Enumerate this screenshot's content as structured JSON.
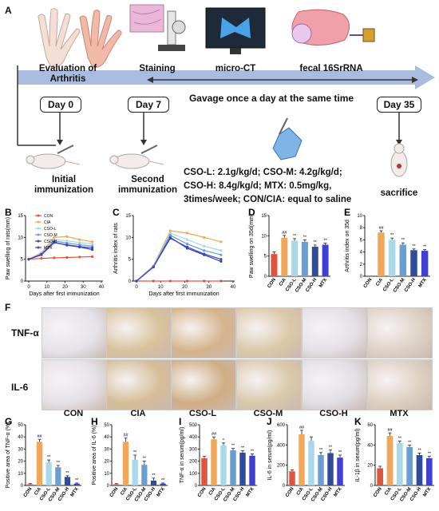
{
  "panelA": {
    "letter": "A",
    "labels": {
      "evaluation": "Evaluation of Arthritis",
      "staining": "Staining",
      "microct": "micro-CT",
      "fecal": "fecal 16SrRNA",
      "gavage": "Gavage once a day at the same time",
      "initial": "Initial\nimmunization",
      "second": "Second\nimmunization",
      "sacrifice": "sacrifice"
    },
    "days": [
      "Day 0",
      "Day 7",
      "Day 35"
    ],
    "doses": [
      "CSO-L: 2.1g/kg/d;  CSO-M: 4.2g/kg/d;",
      "CSO-H: 8.4g/kg/d;   MTX: 0.5mg/kg,",
      "3times/week; CON/CIA: equal to saline"
    ]
  },
  "groups": [
    "CON",
    "CIA",
    "CSO-L",
    "CSO-M",
    "CSO-H",
    "MTX"
  ],
  "colors": {
    "CON": "#e0533f",
    "CIA": "#f2a65a",
    "CSO-L": "#a8d8ea",
    "CSO-M": "#6a9ed0",
    "CSO-H": "#2f4b9a",
    "MTX": "#3f3fd4",
    "arrow": "#a9bce0"
  },
  "panelF": {
    "letter": "F",
    "rows": [
      "TNF-α",
      "IL-6"
    ],
    "cols": [
      "CON",
      "CIA",
      "CSO-L",
      "CSO-M",
      "CSO-H",
      "MTX"
    ]
  },
  "chart_data": [
    {
      "panel": "B",
      "type": "line",
      "ylabel": "Paw swelling of rats(mm)",
      "xlabel": "Days after first immunization",
      "x": [
        0,
        7,
        14,
        21,
        28,
        35
      ],
      "xticks": [
        0,
        10,
        20,
        30,
        40
      ],
      "ylim": [
        0,
        15
      ],
      "yticks": [
        0,
        5,
        10,
        15
      ],
      "series": [
        {
          "name": "CON",
          "values": [
            5,
            5.2,
            5.3,
            5.4,
            5.5,
            5.6
          ]
        },
        {
          "name": "CIA",
          "values": [
            5,
            6.5,
            10,
            10.2,
            9.5,
            9
          ]
        },
        {
          "name": "CSO-L",
          "values": [
            5,
            6.3,
            9.5,
            9.2,
            8.8,
            8.5
          ]
        },
        {
          "name": "CSO-M",
          "values": [
            5,
            6.2,
            9.2,
            8.7,
            8.3,
            8
          ]
        },
        {
          "name": "CSO-H",
          "values": [
            5,
            6.1,
            8.9,
            8.2,
            7.8,
            7.2
          ]
        },
        {
          "name": "MTX",
          "values": [
            5,
            6,
            8.8,
            8.3,
            7.9,
            7.6
          ]
        }
      ]
    },
    {
      "panel": "C",
      "type": "line",
      "ylabel": "Arthritis index of rats",
      "xlabel": "Days after first immunization",
      "x": [
        0,
        7,
        14,
        21,
        28,
        35
      ],
      "xticks": [
        0,
        10,
        20,
        30,
        40
      ],
      "ylim": [
        0,
        15
      ],
      "yticks": [
        0,
        5,
        10,
        15
      ],
      "series": [
        {
          "name": "CON",
          "values": [
            0,
            0,
            0,
            0,
            0,
            0
          ]
        },
        {
          "name": "CIA",
          "values": [
            0,
            3.5,
            11.5,
            11,
            10,
            9
          ]
        },
        {
          "name": "CSO-L",
          "values": [
            0,
            3.4,
            11,
            9.5,
            8,
            7
          ]
        },
        {
          "name": "CSO-M",
          "values": [
            0,
            3.3,
            10.5,
            8.5,
            7,
            6
          ]
        },
        {
          "name": "CSO-H",
          "values": [
            0,
            3.2,
            10,
            7.5,
            6,
            4.5
          ]
        },
        {
          "name": "MTX",
          "values": [
            0,
            3.2,
            9.8,
            7.8,
            6.2,
            5
          ]
        }
      ]
    },
    {
      "panel": "D",
      "type": "bar",
      "ylabel": "Paw swelling on 35d(mm)",
      "categories": [
        "CON",
        "CIA",
        "CSO-L",
        "CSO-M",
        "CSO-H",
        "MTX"
      ],
      "values": [
        5.5,
        9.5,
        8.8,
        8.5,
        7.3,
        7.8
      ],
      "errors": [
        0.5,
        0.6,
        0.5,
        0.5,
        0.4,
        0.4
      ],
      "ylim": [
        0,
        15
      ],
      "yticks": [
        0,
        5,
        10,
        15
      ],
      "sig": [
        "",
        "##",
        "**",
        "**",
        "**",
        "**"
      ]
    },
    {
      "panel": "E",
      "type": "bar",
      "ylabel": "Arthritis index on 35d",
      "categories": [
        "CON",
        "CIA",
        "CSO-L",
        "CSO-M",
        "CSO-H",
        "MTX"
      ],
      "values": [
        0,
        7.2,
        6,
        5.2,
        4.3,
        4.2
      ],
      "errors": [
        0,
        0.3,
        0.3,
        0.3,
        0.2,
        0.2
      ],
      "ylim": [
        0,
        10
      ],
      "yticks": [
        0,
        2,
        4,
        6,
        8,
        10
      ],
      "sig": [
        "",
        "##",
        "**",
        "**",
        "**",
        "**"
      ]
    },
    {
      "panel": "G",
      "type": "bar",
      "ylabel": "Positive area of TNF-α (%)",
      "categories": [
        "CON",
        "CIA",
        "CSO-L",
        "CSO-M",
        "CSO-H",
        "MTX"
      ],
      "values": [
        1,
        36,
        19,
        15,
        7,
        1.5
      ],
      "errors": [
        0.5,
        2,
        2,
        1.5,
        1,
        0.5
      ],
      "ylim": [
        0,
        50
      ],
      "yticks": [
        0,
        10,
        20,
        30,
        40,
        50
      ],
      "sig": [
        "",
        "##",
        "**",
        "**",
        "**",
        "**"
      ]
    },
    {
      "panel": "H",
      "type": "bar",
      "ylabel": "Positive area of IL-6 (%)",
      "categories": [
        "CON",
        "CIA",
        "CSO-L",
        "CSO-M",
        "CSO-H",
        "MTX"
      ],
      "values": [
        1,
        36,
        21,
        17,
        4,
        1.5
      ],
      "errors": [
        0.5,
        3,
        4,
        3,
        2,
        0.5
      ],
      "ylim": [
        0,
        50
      ],
      "yticks": [
        0,
        10,
        20,
        30,
        40,
        50
      ],
      "sig": [
        "",
        "##",
        "**",
        "**",
        "**",
        "**"
      ]
    },
    {
      "panel": "I",
      "type": "bar",
      "ylabel": "TNF-α in serum(pg/ml)",
      "categories": [
        "CON",
        "CIA",
        "CSO-L",
        "CSO-M",
        "CSO-H",
        "MTX"
      ],
      "values": [
        225,
        380,
        330,
        290,
        270,
        245
      ],
      "errors": [
        15,
        20,
        20,
        15,
        15,
        15
      ],
      "ylim": [
        0,
        500
      ],
      "yticks": [
        0,
        100,
        200,
        300,
        400,
        500
      ],
      "sig": [
        "",
        "##",
        "*",
        "**",
        "**",
        "**"
      ]
    },
    {
      "panel": "J",
      "type": "bar",
      "ylabel": "IL-6 in serum(pg/ml)",
      "categories": [
        "CON",
        "CIA",
        "CSO-L",
        "CSO-M",
        "CSO-H",
        "MTX"
      ],
      "values": [
        140,
        505,
        440,
        300,
        320,
        275
      ],
      "errors": [
        15,
        40,
        40,
        25,
        30,
        25
      ],
      "ylim": [
        0,
        600
      ],
      "yticks": [
        0,
        200,
        400,
        600
      ],
      "sig": [
        "",
        "##",
        "",
        "**",
        "**",
        "**"
      ]
    },
    {
      "panel": "K",
      "type": "bar",
      "ylabel": "IL-1β in serum(pg/ml)",
      "categories": [
        "CON",
        "CIA",
        "CSO-L",
        "CSO-M",
        "CSO-H",
        "MTX"
      ],
      "values": [
        17,
        49,
        42,
        38,
        30,
        27
      ],
      "errors": [
        2,
        3,
        2,
        2,
        2,
        2
      ],
      "ylim": [
        0,
        60
      ],
      "yticks": [
        0,
        20,
        40,
        60
      ],
      "sig": [
        "",
        "##",
        "**",
        "**",
        "**",
        "**"
      ]
    }
  ]
}
